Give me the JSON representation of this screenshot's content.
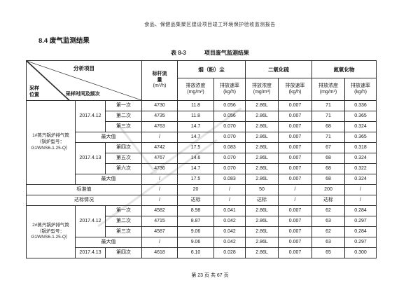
{
  "page": {
    "doc_header": "食品、保健品集聚区建设项目竣工环境保护验收监测报告",
    "section_title": "8.4 废气监测结果",
    "caption_label": "表 8-3",
    "caption_title": "项目废气监测结果",
    "footer": "第 23 页 共 67 页"
  },
  "table": {
    "corner": {
      "analysis": "分析项目",
      "location": "采样\n位置",
      "time": "采样时间及频次"
    },
    "flow": {
      "label": "标杆流量",
      "unit": "(m³/h)"
    },
    "pollutants": [
      {
        "name": "烟（粉）尘"
      },
      {
        "name": "二氧化硫"
      },
      {
        "name": "氮氧化物"
      }
    ],
    "subcols": [
      {
        "label": "排放浓度",
        "unit": "(mg/m³)"
      },
      {
        "label": "排放速率",
        "unit": "(kg/h)"
      }
    ],
    "max_label": "最大值",
    "body": [
      {
        "type": "section",
        "location": "1#蒸汽锅炉排气筒（锅炉型号：G1WNS6-1.25-Q）",
        "groups": [
          {
            "date": "2017.4.12",
            "runs": [
              {
                "label": "第一次",
                "values": [
                  "4730",
                  "11.8",
                  "0.056",
                  "2.86L",
                  "0.007",
                  "71",
                  "0.336"
                ]
              },
              {
                "label": "第二次",
                "values": [
                  "4735",
                  "11.8",
                  "0.056",
                  "2.86L",
                  "0.007",
                  "71",
                  "0.365"
                ]
              },
              {
                "label": "第三次",
                "values": [
                  "4763",
                  "14.7",
                  "0.070",
                  "2.86L",
                  "0.007",
                  "68",
                  "0.324"
                ]
              }
            ],
            "max": [
              "/",
              "14.7",
              "0.070",
              "2.86L",
              "0.007",
              "71",
              "0.365"
            ]
          },
          {
            "date": "2017.4.13",
            "runs": [
              {
                "label": "第四次",
                "values": [
                  "4742",
                  "17.5",
                  "0.083",
                  "2.86L",
                  "0.007",
                  "67",
                  "0.318"
                ]
              },
              {
                "label": "第五次",
                "values": [
                  "4767",
                  "14.6",
                  "0.070",
                  "2.86L",
                  "0.007",
                  "68",
                  "0.324"
                ]
              },
              {
                "label": "第六次",
                "values": [
                  "4736",
                  "14.7",
                  "0.070",
                  "2.86L",
                  "0.007",
                  "68",
                  "0.322"
                ]
              }
            ],
            "max": [
              "/",
              "17.5",
              "0.083",
              "2.86L",
              "0.007",
              "68",
              "0.324"
            ]
          }
        ]
      },
      {
        "type": "full-row",
        "label": "标准值",
        "values": [
          "/",
          "20",
          "/",
          "50",
          "/",
          "200",
          "/"
        ]
      },
      {
        "type": "full-row",
        "label": "达标情况",
        "values": [
          "/",
          "达标",
          "/",
          "达标",
          "/",
          "达标",
          "/"
        ]
      },
      {
        "type": "section",
        "location": "2#蒸汽锅炉排气筒（锅炉型号：G1WNS6-1.25-Q）",
        "groups": [
          {
            "date": "2017.4.12",
            "runs": [
              {
                "label": "第一次",
                "values": [
                  "4582",
                  "8.98",
                  "0.041",
                  "2.86L",
                  "0.007",
                  "62",
                  "0.284"
                ]
              },
              {
                "label": "第二次",
                "values": [
                  "4715",
                  "8.87",
                  "0.042",
                  "2.86L",
                  "0.007",
                  "63",
                  "0.297"
                ]
              },
              {
                "label": "第三次",
                "values": [
                  "4587",
                  "9.06",
                  "0.042",
                  "2.86L",
                  "0.007",
                  "62",
                  "0.284"
                ]
              }
            ],
            "max": [
              "/",
              "9.06",
              "0.042",
              "2.86L",
              "0.007",
              "63",
              "0.297"
            ]
          },
          {
            "date": "2017.4.13",
            "runs": [
              {
                "label": "第四次",
                "values": [
                  "4618",
                  "6.10",
                  "0.028",
                  "2.86L",
                  "0.007",
                  "65",
                  "0.300"
                ]
              }
            ],
            "max": null
          }
        ]
      }
    ]
  }
}
